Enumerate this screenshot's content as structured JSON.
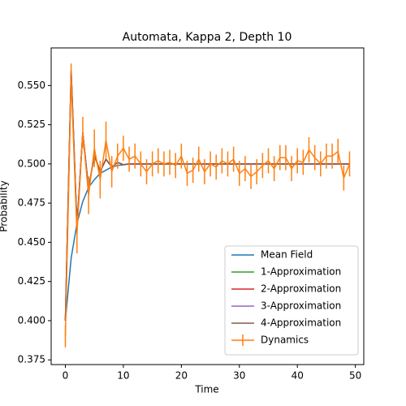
{
  "chart_data": {
    "type": "line",
    "title": "Automata, Kappa 2, Depth 10",
    "xlabel": "Time",
    "ylabel": "Probability",
    "x": [
      0,
      1,
      2,
      3,
      4,
      5,
      6,
      7,
      8,
      9,
      10,
      11,
      12,
      13,
      14,
      15,
      16,
      17,
      18,
      19,
      20,
      21,
      22,
      23,
      24,
      25,
      26,
      27,
      28,
      29,
      30,
      31,
      32,
      33,
      34,
      35,
      36,
      37,
      38,
      39,
      40,
      41,
      42,
      43,
      44,
      45,
      46,
      47,
      48,
      49
    ],
    "xlim": [
      -2.45,
      51.45
    ],
    "xticks": [
      0,
      10,
      20,
      30,
      40,
      50
    ],
    "ylim": [
      0.372,
      0.574
    ],
    "yticks": [
      0.375,
      {
        "value": 0.4,
        "label": "0.400"
      },
      0.425,
      {
        "value": 0.45,
        "label": "0.450"
      },
      0.475,
      {
        "value": 0.5,
        "label": "0.500"
      },
      0.525,
      {
        "value": 0.55,
        "label": "0.550"
      }
    ],
    "legend": "lower right",
    "series": [
      {
        "name": "Mean Field",
        "color": "#1f77b4",
        "values": [
          0.4,
          0.44,
          0.462,
          0.476,
          0.485,
          0.49,
          0.494,
          0.496,
          0.498,
          0.499,
          0.4995,
          0.5,
          0.5,
          0.5,
          0.5,
          0.5,
          0.5,
          0.5,
          0.5,
          0.5,
          0.5,
          0.5,
          0.5,
          0.5,
          0.5,
          0.5,
          0.5,
          0.5,
          0.5,
          0.5,
          0.5,
          0.5,
          0.5,
          0.5,
          0.5,
          0.5,
          0.5,
          0.5,
          0.5,
          0.5,
          0.5,
          0.5,
          0.5,
          0.5,
          0.5,
          0.5,
          0.5,
          0.5,
          0.5,
          0.5
        ]
      },
      {
        "name": "1-Approximation",
        "color": "#2ca02c",
        "values": [
          0.4,
          0.558,
          0.461,
          0.519,
          0.485,
          0.505,
          0.495,
          0.503,
          0.498,
          0.501,
          0.4995,
          0.5,
          0.5,
          0.5,
          0.5,
          0.5,
          0.5,
          0.5,
          0.5,
          0.5,
          0.5,
          0.5,
          0.5,
          0.5,
          0.5,
          0.5,
          0.5,
          0.5,
          0.5,
          0.5,
          0.5,
          0.5,
          0.5,
          0.5,
          0.5,
          0.5,
          0.5,
          0.5,
          0.5,
          0.5,
          0.5,
          0.5,
          0.5,
          0.5,
          0.5,
          0.5,
          0.5,
          0.5,
          0.5,
          0.5
        ]
      },
      {
        "name": "2-Approximation",
        "color": "#d62728",
        "values": [
          0.4,
          0.559,
          0.46,
          0.52,
          0.484,
          0.506,
          0.495,
          0.503,
          0.498,
          0.501,
          0.4995,
          0.5,
          0.5,
          0.5,
          0.5,
          0.5,
          0.5,
          0.5,
          0.5,
          0.5,
          0.5,
          0.5,
          0.5,
          0.5,
          0.5,
          0.5,
          0.5,
          0.5,
          0.5,
          0.5,
          0.5,
          0.5,
          0.5,
          0.5,
          0.5,
          0.5,
          0.5,
          0.5,
          0.5,
          0.5,
          0.5,
          0.5,
          0.5,
          0.5,
          0.5,
          0.5,
          0.5,
          0.5,
          0.5,
          0.5
        ]
      },
      {
        "name": "3-Approximation",
        "color": "#9467bd",
        "values": [
          0.4,
          0.56,
          0.46,
          0.52,
          0.484,
          0.506,
          0.495,
          0.503,
          0.498,
          0.501,
          0.4995,
          0.5,
          0.5,
          0.5,
          0.5,
          0.5,
          0.5,
          0.5,
          0.5,
          0.5,
          0.5,
          0.5,
          0.5,
          0.5,
          0.5,
          0.5,
          0.5,
          0.5,
          0.5,
          0.5,
          0.5,
          0.5,
          0.5,
          0.5,
          0.5,
          0.5,
          0.5,
          0.5,
          0.5,
          0.5,
          0.5,
          0.5,
          0.5,
          0.5,
          0.5,
          0.5,
          0.5,
          0.5,
          0.5,
          0.5
        ]
      },
      {
        "name": "4-Approximation",
        "color": "#8c564b",
        "values": [
          0.4,
          0.56,
          0.46,
          0.52,
          0.484,
          0.506,
          0.495,
          0.503,
          0.498,
          0.501,
          0.4995,
          0.5,
          0.5,
          0.5,
          0.5,
          0.5,
          0.5,
          0.5,
          0.5,
          0.5,
          0.5,
          0.5,
          0.5,
          0.5,
          0.5,
          0.5,
          0.5,
          0.5,
          0.5,
          0.5,
          0.5,
          0.5,
          0.5,
          0.5,
          0.5,
          0.5,
          0.5,
          0.5,
          0.5,
          0.5,
          0.5,
          0.5,
          0.5,
          0.5,
          0.5,
          0.5,
          0.5,
          0.5,
          0.5,
          0.5
        ]
      },
      {
        "name": "Dynamics",
        "color": "#ff7f0e",
        "errorbars": true,
        "values": [
          0.39,
          0.555,
          0.455,
          0.52,
          0.48,
          0.51,
          0.49,
          0.515,
          0.495,
          0.505,
          0.51,
          0.503,
          0.505,
          0.5,
          0.495,
          0.5,
          0.502,
          0.5,
          0.501,
          0.499,
          0.505,
          0.494,
          0.496,
          0.503,
          0.495,
          0.5,
          0.498,
          0.502,
          0.5,
          0.503,
          0.494,
          0.497,
          0.492,
          0.495,
          0.499,
          0.502,
          0.497,
          0.504,
          0.504,
          0.497,
          0.502,
          0.501,
          0.509,
          0.504,
          0.5,
          0.505,
          0.505,
          0.508,
          0.491,
          0.5
        ],
        "errors": [
          0.007,
          0.009,
          0.012,
          0.01,
          0.012,
          0.012,
          0.012,
          0.012,
          0.01,
          0.008,
          0.008,
          0.008,
          0.008,
          0.008,
          0.008,
          0.008,
          0.008,
          0.008,
          0.008,
          0.008,
          0.008,
          0.008,
          0.008,
          0.008,
          0.008,
          0.008,
          0.008,
          0.008,
          0.008,
          0.008,
          0.008,
          0.008,
          0.008,
          0.008,
          0.008,
          0.008,
          0.008,
          0.008,
          0.008,
          0.008,
          0.008,
          0.008,
          0.008,
          0.008,
          0.008,
          0.008,
          0.008,
          0.008,
          0.008,
          0.008
        ]
      }
    ]
  }
}
